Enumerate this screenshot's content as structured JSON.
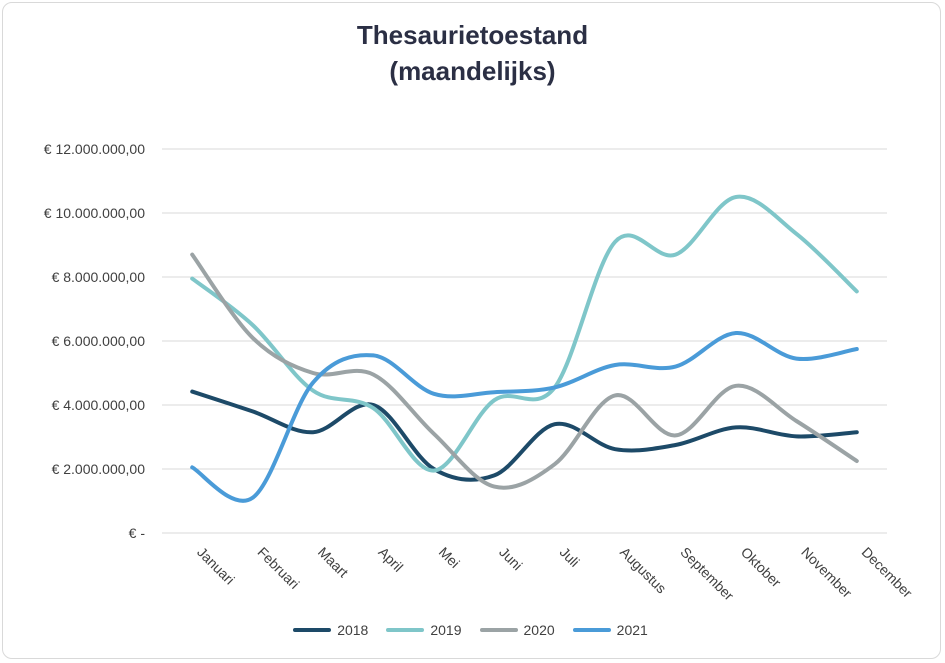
{
  "chart_data": {
    "type": "line",
    "title": "Thesaurietoestand",
    "subtitle": "(maandelijks)",
    "categories": [
      "Januari",
      "Februari",
      "Maart",
      "April",
      "Mei",
      "Juni",
      "Juli",
      "Augustus",
      "September",
      "Oktober",
      "November",
      "December"
    ],
    "ylim": [
      0,
      12000000
    ],
    "y_tick_values": [
      0,
      2000000,
      4000000,
      6000000,
      8000000,
      10000000,
      12000000
    ],
    "y_tick_labels": [
      "€ -",
      "€ 2.000.000,00",
      "€ 4.000.000,00",
      "€ 6.000.000,00",
      "€ 8.000.000,00",
      "€ 10.000.000,00",
      "€ 12.000.000,00"
    ],
    "grid": true,
    "legend_position": "bottom",
    "series": [
      {
        "name": "2018",
        "color": "#1d4a68",
        "values": [
          4420000,
          3800000,
          3150000,
          4000000,
          2000000,
          1800000,
          3400000,
          2620000,
          2750000,
          3300000,
          3020000,
          3150000
        ]
      },
      {
        "name": "2019",
        "color": "#7fc6c9",
        "values": [
          7950000,
          6500000,
          4450000,
          3900000,
          1950000,
          4150000,
          4550000,
          9100000,
          8700000,
          10500000,
          9350000,
          7550000
        ]
      },
      {
        "name": "2020",
        "color": "#9ba3a5",
        "values": [
          8700000,
          6100000,
          5000000,
          4950000,
          3100000,
          1450000,
          2150000,
          4300000,
          3050000,
          4600000,
          3500000,
          2250000
        ]
      },
      {
        "name": "2021",
        "color": "#4a9bd8",
        "values": [
          2050000,
          1100000,
          4700000,
          5550000,
          4350000,
          4400000,
          4550000,
          5250000,
          5200000,
          6250000,
          5450000,
          5750000
        ]
      }
    ]
  }
}
